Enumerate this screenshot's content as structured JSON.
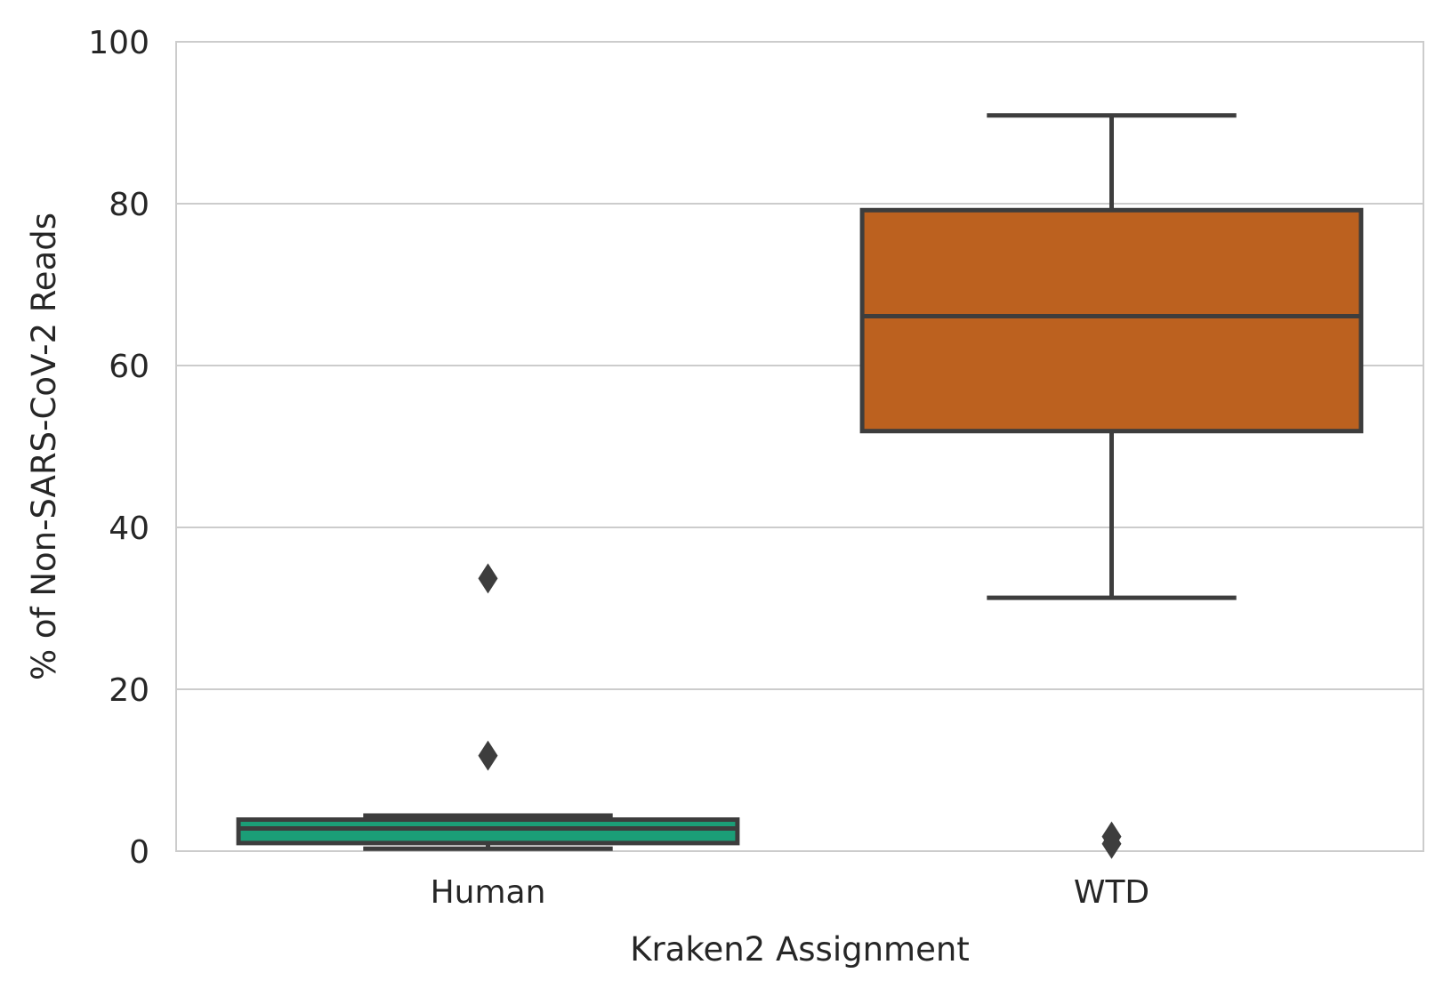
{
  "chart_data": {
    "type": "box",
    "xlabel": "Kraken2 Assignment",
    "ylabel": "% of Non-SARS-CoV-2 Reads",
    "ylim": [
      0,
      100
    ],
    "yticks": [
      "0",
      "20",
      "40",
      "60",
      "80",
      "100"
    ],
    "grid": "horizontal",
    "categories": [
      {
        "label": "Human",
        "color": "#1b9e77",
        "whisker_low": 0.3,
        "q1": 1.0,
        "median": 2.8,
        "q3": 3.9,
        "whisker_high": 4.4,
        "outliers": [
          33.7,
          11.8
        ]
      },
      {
        "label": "WTD",
        "color": "#bc611f",
        "whisker_low": 31.3,
        "q1": 51.9,
        "median": 66.1,
        "q3": 79.2,
        "whisker_high": 90.9,
        "outliers": [
          1.8,
          0.9
        ]
      }
    ]
  }
}
